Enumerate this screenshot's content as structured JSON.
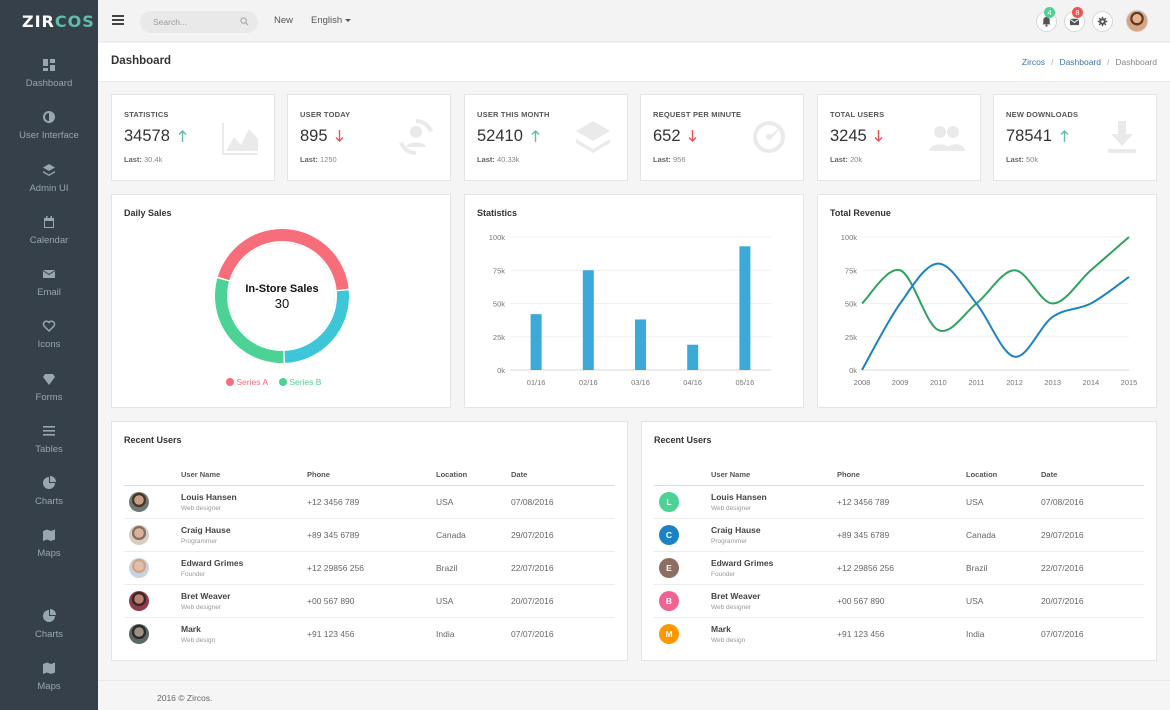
{
  "app": {
    "logo_part1": "ZIR",
    "logo_part2": "COS"
  },
  "sidebar": {
    "items": [
      {
        "label": "Dashboard",
        "icon": "dashboard-icon"
      },
      {
        "label": "User Interface",
        "icon": "contrast-icon"
      },
      {
        "label": "Admin UI",
        "icon": "layers-icon"
      },
      {
        "label": "Calendar",
        "icon": "calendar-icon"
      },
      {
        "label": "Email",
        "icon": "mail-icon"
      },
      {
        "label": "Icons",
        "icon": "heart-icon"
      },
      {
        "label": "Forms",
        "icon": "diamond-icon"
      },
      {
        "label": "Tables",
        "icon": "list-icon"
      },
      {
        "label": "Charts",
        "icon": "pie-icon"
      },
      {
        "label": "Maps",
        "icon": "map-icon"
      },
      {
        "label": "Charts",
        "icon": "pie-icon"
      },
      {
        "label": "Maps",
        "icon": "map-icon"
      }
    ]
  },
  "topbar": {
    "search_placeholder": "Search...",
    "nav_new": "New",
    "nav_language": "English",
    "notifications_count": "4",
    "messages_count": "8"
  },
  "page": {
    "title": "Dashboard"
  },
  "breadcrumb": [
    "Zircos",
    "Dashboard",
    "Dashboard"
  ],
  "stats": [
    {
      "title": "STATISTICS",
      "value": "34578",
      "trend": "up",
      "last_label": "Last:",
      "last_value": "30.4k",
      "icon": "chart-icon"
    },
    {
      "title": "USER TODAY",
      "value": "895",
      "trend": "down",
      "last_label": "Last:",
      "last_value": "1250",
      "icon": "user-refresh-icon"
    },
    {
      "title": "USER THIS MONTH",
      "value": "52410",
      "trend": "up",
      "last_label": "Last:",
      "last_value": "40.33k",
      "icon": "layers-icon"
    },
    {
      "title": "REQUEST PER MINUTE",
      "value": "652",
      "trend": "down",
      "last_label": "Last:",
      "last_value": "956",
      "icon": "speedometer-icon"
    },
    {
      "title": "TOTAL USERS",
      "value": "3245",
      "trend": "down",
      "last_label": "Last:",
      "last_value": "20k",
      "icon": "users-icon"
    },
    {
      "title": "NEW DOWNLOADS",
      "value": "78541",
      "trend": "up",
      "last_label": "Last:",
      "last_value": "50k",
      "icon": "download-icon"
    }
  ],
  "colors": {
    "up": "#5fbeaa",
    "down": "#ef5350",
    "seriesA": "#f76e7a",
    "seriesB": "#4dd295",
    "seriesC": "#3cc6d8",
    "bar": "#3ca9d9",
    "line1": "#2da35f",
    "line2": "#1c82c6"
  },
  "daily_sales": {
    "title": "Daily Sales",
    "center_label": "In-Store Sales",
    "center_value": "30",
    "legend": [
      "Series A",
      "Series B"
    ]
  },
  "chart_data": [
    {
      "type": "pie",
      "title": "Daily Sales",
      "categories": [
        "Series A",
        "Series B",
        ""
      ],
      "values": [
        44,
        30,
        26
      ],
      "legend": "bottom"
    },
    {
      "type": "bar",
      "title": "Statistics",
      "categories": [
        "01/16",
        "02/16",
        "03/16",
        "04/16",
        "05/16"
      ],
      "values": [
        42000,
        75000,
        38000,
        19000,
        93000
      ],
      "yticks": [
        "0k",
        "25k",
        "50k",
        "75k",
        "100k"
      ],
      "ylim": [
        0,
        100000
      ]
    },
    {
      "type": "line",
      "title": "Total Revenue",
      "x": [
        "2008",
        "2009",
        "2010",
        "2011",
        "2012",
        "2013",
        "2014",
        "2015"
      ],
      "series": [
        {
          "values": [
            50000,
            75000,
            30000,
            50000,
            75000,
            50000,
            75000,
            100000
          ]
        },
        {
          "values": [
            0,
            50000,
            80000,
            50000,
            10000,
            40000,
            50000,
            70000
          ]
        }
      ],
      "yticks": [
        "0k",
        "25k",
        "50k",
        "75k",
        "100k"
      ],
      "ylim": [
        0,
        100000
      ]
    }
  ],
  "bar_chart": {
    "title": "Statistics"
  },
  "line_chart": {
    "title": "Total Revenue"
  },
  "users_table": {
    "title": "Recent Users",
    "columns": [
      "User Name",
      "Phone",
      "Location",
      "Date"
    ],
    "rows": [
      {
        "name": "Louis Hansen",
        "role": "Web designer",
        "phone": "+12 3456 789",
        "location": "USA",
        "date": "07/08/2016",
        "letter": "L",
        "letter_color": "#4dd295"
      },
      {
        "name": "Craig Hause",
        "role": "Programmer",
        "phone": "+89 345 6789",
        "location": "Canada",
        "date": "29/07/2016",
        "letter": "C",
        "letter_color": "#1c82c6"
      },
      {
        "name": "Edward Grimes",
        "role": "Founder",
        "phone": "+12 29856 256",
        "location": "Brazil",
        "date": "22/07/2016",
        "letter": "E",
        "letter_color": "#8d6e63"
      },
      {
        "name": "Bret Weaver",
        "role": "Web designer",
        "phone": "+00 567 890",
        "location": "USA",
        "date": "20/07/2016",
        "letter": "B",
        "letter_color": "#f06292"
      },
      {
        "name": "Mark",
        "role": "Web design",
        "phone": "+91 123 456",
        "location": "India",
        "date": "07/07/2016",
        "letter": "M",
        "letter_color": "#ff9800"
      }
    ]
  },
  "footer": {
    "text": "2016 © Zircos."
  }
}
